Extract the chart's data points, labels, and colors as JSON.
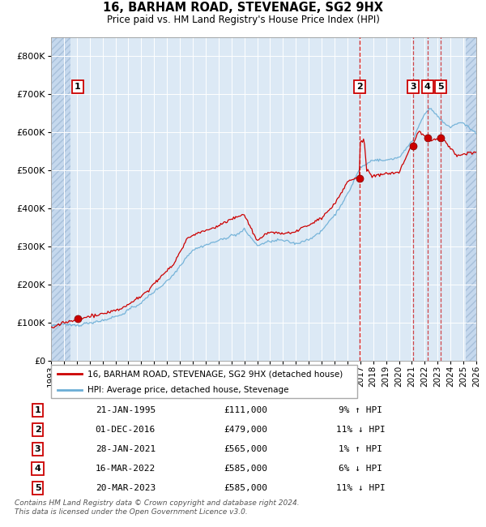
{
  "title": "16, BARHAM ROAD, STEVENAGE, SG2 9HX",
  "subtitle": "Price paid vs. HM Land Registry's House Price Index (HPI)",
  "xlim_start": 1993.0,
  "xlim_end": 2026.0,
  "ylim_min": 0,
  "ylim_max": 850000,
  "yticks": [
    0,
    100000,
    200000,
    300000,
    400000,
    500000,
    600000,
    700000,
    800000
  ],
  "ytick_labels": [
    "£0",
    "£100K",
    "£200K",
    "£300K",
    "£400K",
    "£500K",
    "£600K",
    "£700K",
    "£800K"
  ],
  "xticks": [
    1993,
    1994,
    1995,
    1996,
    1997,
    1998,
    1999,
    2000,
    2001,
    2002,
    2003,
    2004,
    2005,
    2006,
    2007,
    2008,
    2009,
    2010,
    2011,
    2012,
    2013,
    2014,
    2015,
    2016,
    2017,
    2018,
    2019,
    2020,
    2021,
    2022,
    2023,
    2024,
    2025,
    2026
  ],
  "hpi_color": "#6baed6",
  "price_color": "#cc0000",
  "bg_color": "#dce9f5",
  "grid_color": "#ffffff",
  "vline_color": "#cc0000",
  "sale_points": [
    {
      "num": 1,
      "year": 1995.06,
      "price": 111000
    },
    {
      "num": 2,
      "year": 2016.92,
      "price": 479000
    },
    {
      "num": 3,
      "year": 2021.08,
      "price": 565000
    },
    {
      "num": 4,
      "year": 2022.21,
      "price": 585000
    },
    {
      "num": 5,
      "year": 2023.22,
      "price": 585000
    }
  ],
  "legend_entries": [
    "16, BARHAM ROAD, STEVENAGE, SG2 9HX (detached house)",
    "HPI: Average price, detached house, Stevenage"
  ],
  "table_rows": [
    [
      "1",
      "21-JAN-1995",
      "£111,000",
      "9% ↑ HPI"
    ],
    [
      "2",
      "01-DEC-2016",
      "£479,000",
      "11% ↓ HPI"
    ],
    [
      "3",
      "28-JAN-2021",
      "£565,000",
      "1% ↑ HPI"
    ],
    [
      "4",
      "16-MAR-2022",
      "£585,000",
      "6% ↓ HPI"
    ],
    [
      "5",
      "20-MAR-2023",
      "£585,000",
      "11% ↓ HPI"
    ]
  ],
  "footnote": "Contains HM Land Registry data © Crown copyright and database right 2024.\nThis data is licensed under the Open Government Licence v3.0.",
  "vline_solid": [
    2016.92
  ],
  "vline_dashed": [
    2021.08,
    2022.21,
    2023.22
  ],
  "hatch_left_end": 1994.5,
  "hatch_right_start": 2025.2
}
